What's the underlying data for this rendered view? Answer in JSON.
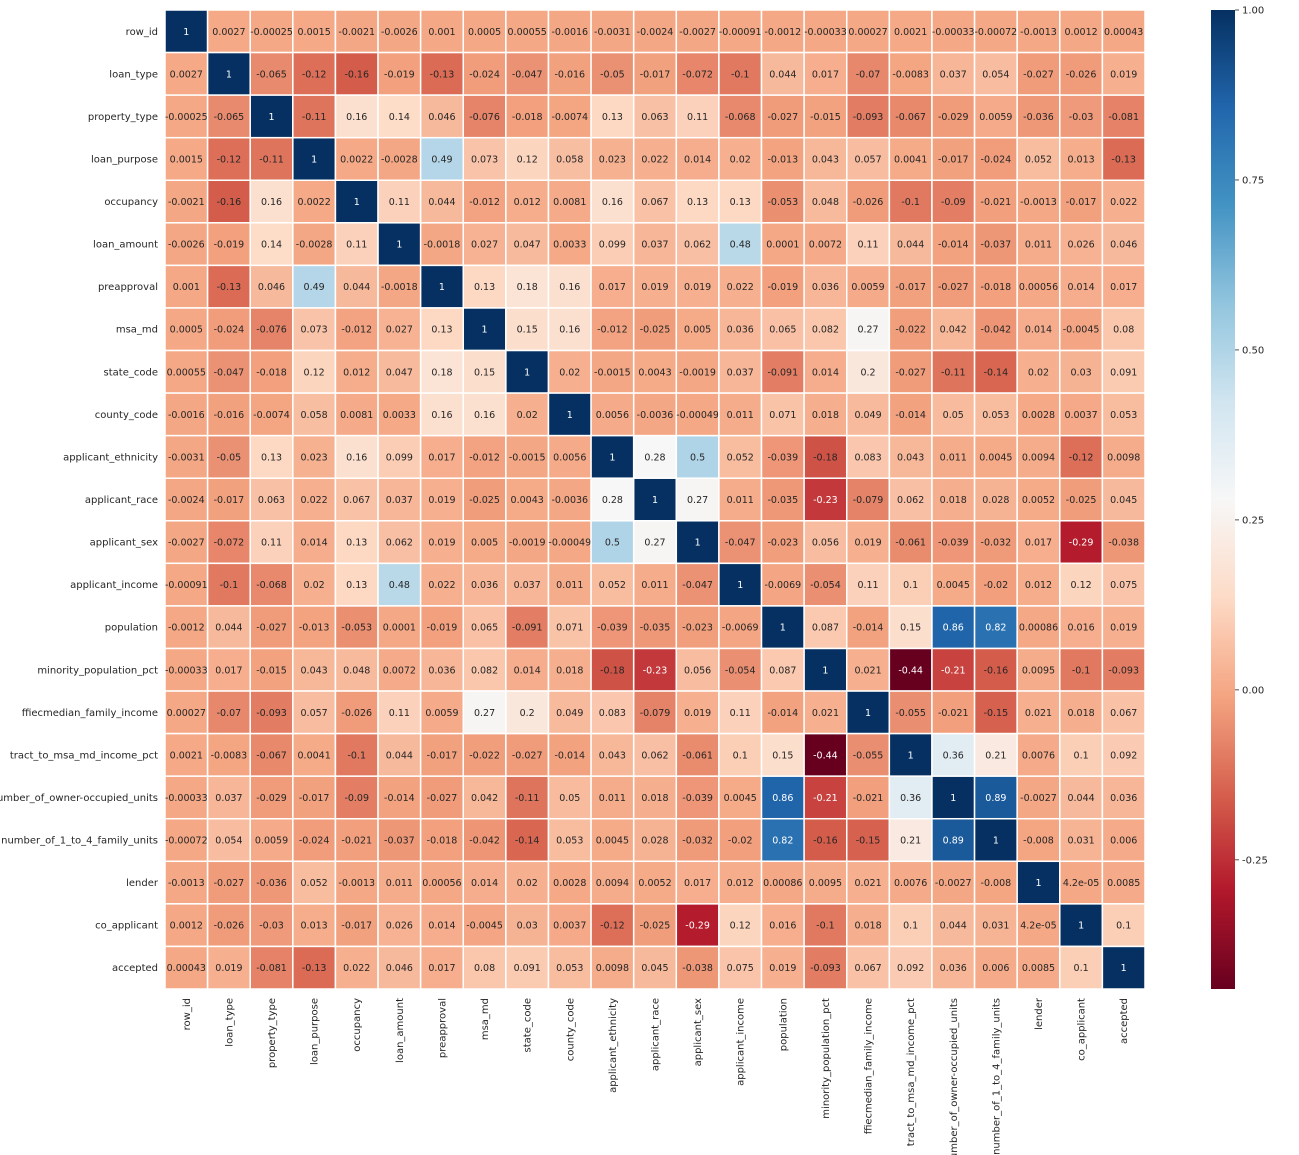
{
  "chart_data": {
    "type": "heatmap",
    "variables": [
      "row_id",
      "loan_type",
      "property_type",
      "loan_purpose",
      "occupancy",
      "loan_amount",
      "preapproval",
      "msa_md",
      "state_code",
      "county_code",
      "applicant_ethnicity",
      "applicant_race",
      "applicant_sex",
      "applicant_income",
      "population",
      "minority_population_pct",
      "ffiecmedian_family_income",
      "tract_to_msa_md_income_pct",
      "number_of_owner-occupied_units",
      "number_of_1_to_4_family_units",
      "lender",
      "co_applicant",
      "accepted"
    ],
    "matrix": [
      [
        "1",
        "0.0027",
        "-0.00025",
        "0.0015",
        "-0.0021",
        "-0.0026",
        "0.001",
        "0.0005",
        "0.00055",
        "-0.0016",
        "-0.0031",
        "-0.0024",
        "-0.0027",
        "-0.00091",
        "-0.0012",
        "-0.00033",
        "0.00027",
        "0.0021",
        "-0.00033",
        "-0.00072",
        "-0.0013",
        "0.0012",
        "0.00043"
      ],
      [
        "0.0027",
        "1",
        "-0.065",
        "-0.12",
        "-0.16",
        "-0.019",
        "-0.13",
        "-0.024",
        "-0.047",
        "-0.016",
        "-0.05",
        "-0.017",
        "-0.072",
        "-0.1",
        "0.044",
        "0.017",
        "-0.07",
        "-0.0083",
        "0.037",
        "0.054",
        "-0.027",
        "-0.026",
        "0.019"
      ],
      [
        "-0.00025",
        "-0.065",
        "1",
        "-0.11",
        "0.16",
        "0.14",
        "0.046",
        "-0.076",
        "-0.018",
        "-0.0074",
        "0.13",
        "0.063",
        "0.11",
        "-0.068",
        "-0.027",
        "-0.015",
        "-0.093",
        "-0.067",
        "-0.029",
        "0.0059",
        "-0.036",
        "-0.03",
        "-0.081"
      ],
      [
        "0.0015",
        "-0.12",
        "-0.11",
        "1",
        "0.0022",
        "-0.0028",
        "0.49",
        "0.073",
        "0.12",
        "0.058",
        "0.023",
        "0.022",
        "0.014",
        "0.02",
        "-0.013",
        "0.043",
        "0.057",
        "0.0041",
        "-0.017",
        "-0.024",
        "0.052",
        "0.013",
        "-0.13"
      ],
      [
        "-0.0021",
        "-0.16",
        "0.16",
        "0.0022",
        "1",
        "0.11",
        "0.044",
        "-0.012",
        "0.012",
        "0.0081",
        "0.16",
        "0.067",
        "0.13",
        "0.13",
        "-0.053",
        "0.048",
        "-0.026",
        "-0.1",
        "-0.09",
        "-0.021",
        "-0.0013",
        "-0.017",
        "0.022"
      ],
      [
        "-0.0026",
        "-0.019",
        "0.14",
        "-0.0028",
        "0.11",
        "1",
        "-0.0018",
        "0.027",
        "0.047",
        "0.0033",
        "0.099",
        "0.037",
        "0.062",
        "0.48",
        "0.0001",
        "0.0072",
        "0.11",
        "0.044",
        "-0.014",
        "-0.037",
        "0.011",
        "0.026",
        "0.046"
      ],
      [
        "0.001",
        "-0.13",
        "0.046",
        "0.49",
        "0.044",
        "-0.0018",
        "1",
        "0.13",
        "0.18",
        "0.16",
        "0.017",
        "0.019",
        "0.019",
        "0.022",
        "-0.019",
        "0.036",
        "0.0059",
        "-0.017",
        "-0.027",
        "-0.018",
        "0.00056",
        "0.014",
        "0.017"
      ],
      [
        "0.0005",
        "-0.024",
        "-0.076",
        "0.073",
        "-0.012",
        "0.027",
        "0.13",
        "1",
        "0.15",
        "0.16",
        "-0.012",
        "-0.025",
        "0.005",
        "0.036",
        "0.065",
        "0.082",
        "0.27",
        "-0.022",
        "0.042",
        "-0.042",
        "0.014",
        "-0.0045",
        "0.08"
      ],
      [
        "0.00055",
        "-0.047",
        "-0.018",
        "0.12",
        "0.012",
        "0.047",
        "0.18",
        "0.15",
        "1",
        "0.02",
        "-0.0015",
        "0.0043",
        "-0.0019",
        "0.037",
        "-0.091",
        "0.014",
        "0.2",
        "-0.027",
        "-0.11",
        "-0.14",
        "0.02",
        "0.03",
        "0.091"
      ],
      [
        "-0.0016",
        "-0.016",
        "-0.0074",
        "0.058",
        "0.0081",
        "0.0033",
        "0.16",
        "0.16",
        "0.02",
        "1",
        "0.0056",
        "-0.0036",
        "-0.00049",
        "0.011",
        "0.071",
        "0.018",
        "0.049",
        "-0.014",
        "0.05",
        "0.053",
        "0.0028",
        "0.0037",
        "0.053"
      ],
      [
        "-0.0031",
        "-0.05",
        "0.13",
        "0.023",
        "0.16",
        "0.099",
        "0.017",
        "-0.012",
        "-0.0015",
        "0.0056",
        "1",
        "0.28",
        "0.5",
        "0.052",
        "-0.039",
        "-0.18",
        "0.083",
        "0.043",
        "0.011",
        "0.0045",
        "0.0094",
        "-0.12",
        "0.0098"
      ],
      [
        "-0.0024",
        "-0.017",
        "0.063",
        "0.022",
        "0.067",
        "0.037",
        "0.019",
        "-0.025",
        "0.0043",
        "-0.0036",
        "0.28",
        "1",
        "0.27",
        "0.011",
        "-0.035",
        "-0.23",
        "-0.079",
        "0.062",
        "0.018",
        "0.028",
        "0.0052",
        "-0.025",
        "0.045"
      ],
      [
        "-0.0027",
        "-0.072",
        "0.11",
        "0.014",
        "0.13",
        "0.062",
        "0.019",
        "0.005",
        "-0.0019",
        "-0.00049",
        "0.5",
        "0.27",
        "1",
        "-0.047",
        "-0.023",
        "0.056",
        "0.019",
        "-0.061",
        "-0.039",
        "-0.032",
        "0.017",
        "-0.29",
        "-0.038"
      ],
      [
        "-0.00091",
        "-0.1",
        "-0.068",
        "0.02",
        "0.13",
        "0.48",
        "0.022",
        "0.036",
        "0.037",
        "0.011",
        "0.052",
        "0.011",
        "-0.047",
        "1",
        "-0.0069",
        "-0.054",
        "0.11",
        "0.1",
        "0.0045",
        "-0.02",
        "0.012",
        "0.12",
        "0.075"
      ],
      [
        "-0.0012",
        "0.044",
        "-0.027",
        "-0.013",
        "-0.053",
        "0.0001",
        "-0.019",
        "0.065",
        "-0.091",
        "0.071",
        "-0.039",
        "-0.035",
        "-0.023",
        "-0.0069",
        "1",
        "0.087",
        "-0.014",
        "0.15",
        "0.86",
        "0.82",
        "0.00086",
        "0.016",
        "0.019"
      ],
      [
        "-0.00033",
        "0.017",
        "-0.015",
        "0.043",
        "0.048",
        "0.0072",
        "0.036",
        "0.082",
        "0.014",
        "0.018",
        "-0.18",
        "-0.23",
        "0.056",
        "-0.054",
        "0.087",
        "1",
        "0.021",
        "-0.44",
        "-0.21",
        "-0.16",
        "0.0095",
        "-0.1",
        "-0.093"
      ],
      [
        "0.00027",
        "-0.07",
        "-0.093",
        "0.057",
        "-0.026",
        "0.11",
        "0.0059",
        "0.27",
        "0.2",
        "0.049",
        "0.083",
        "-0.079",
        "0.019",
        "0.11",
        "-0.014",
        "0.021",
        "1",
        "-0.055",
        "-0.021",
        "-0.15",
        "0.021",
        "0.018",
        "0.067"
      ],
      [
        "0.0021",
        "-0.0083",
        "-0.067",
        "0.0041",
        "-0.1",
        "0.044",
        "-0.017",
        "-0.022",
        "-0.027",
        "-0.014",
        "0.043",
        "0.062",
        "-0.061",
        "0.1",
        "0.15",
        "-0.44",
        "-0.055",
        "1",
        "0.36",
        "0.21",
        "0.0076",
        "0.1",
        "0.092"
      ],
      [
        "-0.00033",
        "0.037",
        "-0.029",
        "-0.017",
        "-0.09",
        "-0.014",
        "-0.027",
        "0.042",
        "-0.11",
        "0.05",
        "0.011",
        "0.018",
        "-0.039",
        "0.0045",
        "0.86",
        "-0.21",
        "-0.021",
        "0.36",
        "1",
        "0.89",
        "-0.0027",
        "0.044",
        "0.036"
      ],
      [
        "-0.00072",
        "0.054",
        "0.0059",
        "-0.024",
        "-0.021",
        "-0.037",
        "-0.018",
        "-0.042",
        "-0.14",
        "0.053",
        "0.0045",
        "0.028",
        "-0.032",
        "-0.02",
        "0.82",
        "-0.16",
        "-0.15",
        "0.21",
        "0.89",
        "1",
        "-0.008",
        "0.031",
        "0.006"
      ],
      [
        "-0.0013",
        "-0.027",
        "-0.036",
        "0.052",
        "-0.0013",
        "0.011",
        "0.00056",
        "0.014",
        "0.02",
        "0.0028",
        "0.0094",
        "0.0052",
        "0.017",
        "0.012",
        "0.00086",
        "0.0095",
        "0.021",
        "0.0076",
        "-0.0027",
        "-0.008",
        "1",
        "4.2e-05",
        "0.0085"
      ],
      [
        "0.0012",
        "-0.026",
        "-0.03",
        "0.013",
        "-0.017",
        "0.026",
        "0.014",
        "-0.0045",
        "0.03",
        "0.0037",
        "-0.12",
        "-0.025",
        "-0.29",
        "0.12",
        "0.016",
        "-0.1",
        "0.018",
        "0.1",
        "0.044",
        "0.031",
        "4.2e-05",
        "1",
        "0.1"
      ],
      [
        "0.00043",
        "0.019",
        "-0.081",
        "-0.13",
        "0.022",
        "0.046",
        "0.017",
        "0.08",
        "0.091",
        "0.053",
        "0.0098",
        "0.045",
        "-0.038",
        "0.075",
        "0.019",
        "-0.093",
        "0.067",
        "0.092",
        "0.036",
        "0.006",
        "0.0085",
        "0.1",
        "1"
      ]
    ],
    "colorbar": {
      "colormap": "RdBu",
      "vmin": -0.44,
      "vmax": 1.0,
      "ticks": [
        "1.00",
        "0.75",
        "0.50",
        "0.25",
        "0.00",
        "-0.25"
      ]
    }
  }
}
